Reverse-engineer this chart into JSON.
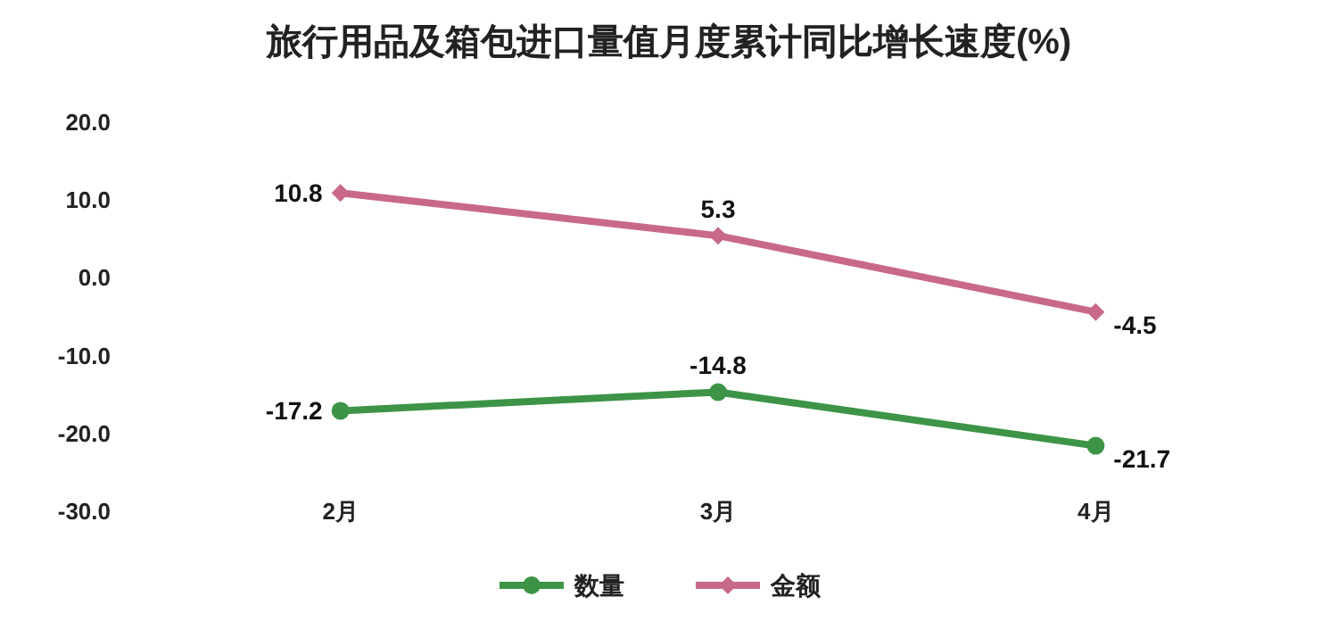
{
  "chart_data": {
    "type": "line",
    "title": "旅行用品及箱包进口量值月度累计同比增长速度(%)",
    "categories": [
      "2月",
      "3月",
      "4月"
    ],
    "series": [
      {
        "name": "数量",
        "color": "#3d9447",
        "marker": "circle",
        "values": [
          -17.2,
          -14.8,
          -21.7
        ]
      },
      {
        "name": "金额",
        "color": "#c8698a",
        "marker": "diamond",
        "values": [
          10.8,
          5.3,
          -4.5
        ]
      }
    ],
    "ylim": [
      -30,
      20
    ],
    "yticks": [
      {
        "value": -30,
        "label": "-30.0"
      },
      {
        "value": -20,
        "label": "-20.0"
      },
      {
        "value": -10,
        "label": "-10.0"
      },
      {
        "value": 0,
        "label": "0.0"
      },
      {
        "value": 10,
        "label": "10.0"
      },
      {
        "value": 20,
        "label": "20.0"
      }
    ],
    "grid": false,
    "legend": "bottom",
    "data_labels": true
  }
}
